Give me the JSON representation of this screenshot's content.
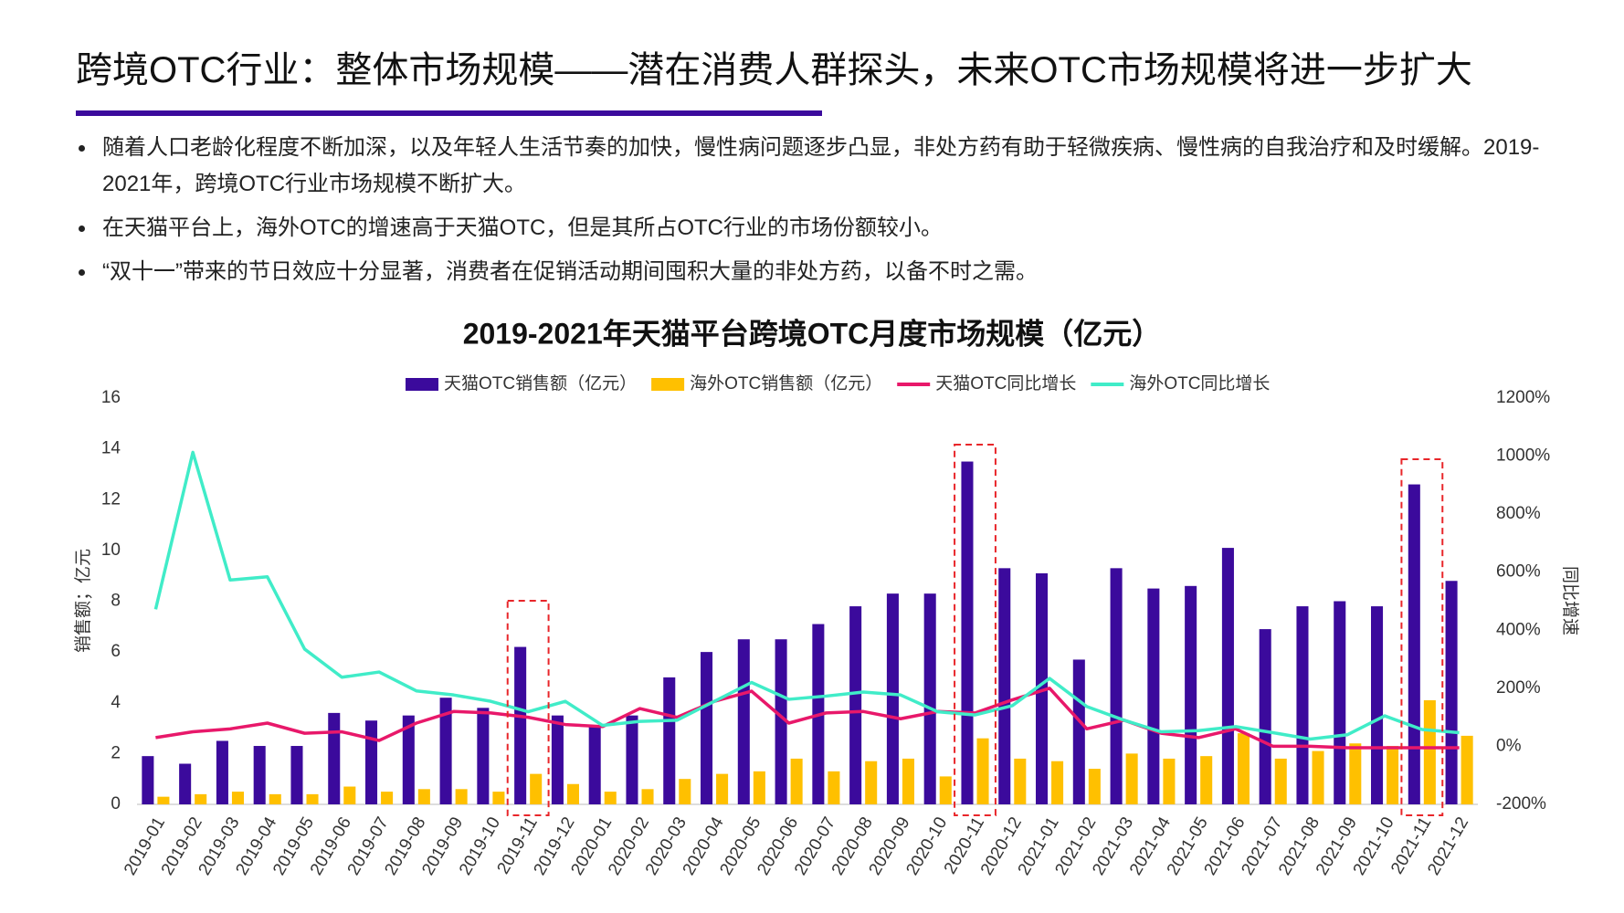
{
  "header": {
    "title": "跨境OTC行业：整体市场规模——潜在消费人群探头，未来OTC市场规模将进一步扩大"
  },
  "bullets": [
    "随着人口老龄化程度不断加深，以及年轻人生活节奏的加快，慢性病问题逐步凸显，非处方药有助于轻微疾病、慢性病的自我治疗和及时缓解。2019-2021年，跨境OTC行业市场规模不断扩大。",
    "在天猫平台上，海外OTC的增速高于天猫OTC，但是其所占OTC行业的市场份额较小。",
    "“双十一”带来的节日效应十分显著，消费者在促销活动期间囤积大量的非处方药，以备不时之需。"
  ],
  "chart_data": {
    "type": "bar-line",
    "title": "2019-2021年天猫平台跨境OTC月度市场规模（亿元）",
    "ylabel": "销售额；亿元",
    "y2label": "同比增速",
    "categories": [
      "2019-01",
      "2019-02",
      "2019-03",
      "2019-04",
      "2019-05",
      "2019-06",
      "2019-07",
      "2019-08",
      "2019-09",
      "2019-10",
      "2019-11",
      "2019-12",
      "2020-01",
      "2020-02",
      "2020-03",
      "2020-04",
      "2020-05",
      "2020-06",
      "2020-07",
      "2020-08",
      "2020-09",
      "2020-10",
      "2020-11",
      "2020-12",
      "2021-01",
      "2021-02",
      "2021-03",
      "2021-04",
      "2021-05",
      "2021-06",
      "2021-07",
      "2021-08",
      "2021-09",
      "2021-10",
      "2021-11",
      "2021-12"
    ],
    "series": [
      {
        "name": "天猫OTC销售额（亿元）",
        "type": "bar",
        "color": "#3b0a9c",
        "values": [
          1.9,
          1.6,
          2.5,
          2.3,
          2.3,
          3.6,
          3.3,
          3.5,
          4.2,
          3.8,
          6.2,
          3.5,
          3.1,
          3.5,
          5.0,
          6.0,
          6.5,
          6.5,
          7.1,
          7.8,
          8.3,
          8.3,
          13.5,
          9.3,
          9.1,
          5.7,
          9.3,
          8.5,
          8.6,
          10.1,
          6.9,
          7.8,
          8.0,
          7.8,
          12.6,
          8.8
        ]
      },
      {
        "name": "海外OTC销售额（亿元）",
        "type": "bar",
        "color": "#ffc000",
        "values": [
          0.3,
          0.4,
          0.5,
          0.4,
          0.4,
          0.7,
          0.5,
          0.6,
          0.6,
          0.5,
          1.2,
          0.8,
          0.5,
          0.6,
          1.0,
          1.2,
          1.3,
          1.8,
          1.3,
          1.7,
          1.8,
          1.1,
          2.6,
          1.8,
          1.7,
          1.4,
          2.0,
          1.8,
          1.9,
          2.8,
          1.8,
          2.1,
          2.4,
          2.3,
          4.1,
          2.7
        ]
      },
      {
        "name": "天猫OTC同比增长",
        "type": "line",
        "axis": "y2",
        "color": "#e8186a",
        "values": [
          30,
          50,
          60,
          80,
          45,
          50,
          20,
          80,
          120,
          115,
          100,
          75,
          68,
          130,
          100,
          155,
          190,
          80,
          115,
          120,
          95,
          120,
          115,
          160,
          200,
          60,
          90,
          45,
          30,
          60,
          0,
          0,
          -5,
          -5,
          -5,
          -5
        ]
      },
      {
        "name": "海外OTC同比增长",
        "type": "line",
        "axis": "y2",
        "color": "#40ecc8",
        "values": [
          472,
          1013,
          573,
          584,
          335,
          238,
          256,
          191,
          177,
          155,
          119,
          155,
          72,
          86,
          90,
          155,
          220,
          162,
          173,
          187,
          177,
          119,
          108,
          140,
          234,
          137,
          90,
          50,
          54,
          68,
          47,
          25,
          40,
          105,
          58,
          47
        ]
      }
    ],
    "ylim": [
      0,
      16
    ],
    "yticks": [
      0,
      2,
      4,
      6,
      8,
      10,
      12,
      14,
      16
    ],
    "y2lim": [
      -200,
      1200
    ],
    "y2ticks": [
      {
        "value": -200,
        "label": "-200%"
      },
      {
        "value": 0,
        "label": "0%"
      },
      {
        "value": 200,
        "label": "200%"
      },
      {
        "value": 400,
        "label": "400%"
      },
      {
        "value": 600,
        "label": "600%"
      },
      {
        "value": 800,
        "label": "800%"
      },
      {
        "value": 1000,
        "label": "1000%"
      },
      {
        "value": 1200,
        "label": "1200%"
      }
    ],
    "legend": "top",
    "grid": false
  }
}
